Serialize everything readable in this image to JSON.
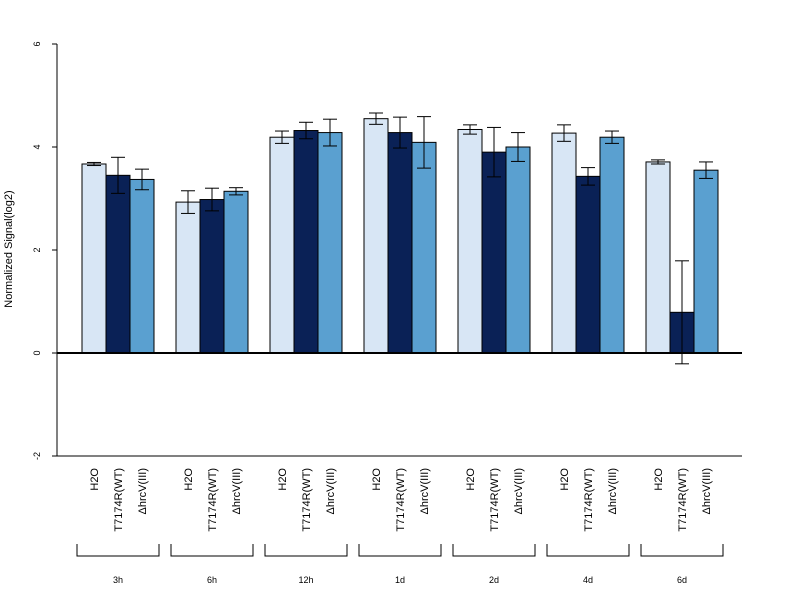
{
  "chart_data": {
    "type": "bar",
    "title": "",
    "xlabel": "",
    "ylabel": "Normalized Signal(log2)",
    "ylim": [
      -2,
      6
    ],
    "yticks": [
      -2,
      0,
      2,
      4,
      6
    ],
    "ytick_labels": [
      "-2",
      "0",
      "2",
      "4",
      "6"
    ],
    "grid": false,
    "legend": "none",
    "groups": [
      "3h",
      "6h",
      "12h",
      "1d",
      "2d",
      "4d",
      "6d"
    ],
    "bar_labels": [
      "H2O",
      "T7174R(WT)",
      "ΔhrcV(III)"
    ],
    "series": [
      {
        "color": "#d8e6f5",
        "values": [
          3.67,
          2.93,
          4.19,
          4.55,
          4.34,
          4.27,
          3.71
        ],
        "error": [
          0.03,
          0.22,
          0.12,
          0.11,
          0.09,
          0.16,
          0.04
        ]
      },
      {
        "color": "#0a2156",
        "values": [
          3.45,
          2.98,
          4.32,
          4.28,
          3.9,
          3.43,
          0.79
        ],
        "error": [
          0.35,
          0.22,
          0.16,
          0.3,
          0.48,
          0.17,
          1.0
        ]
      },
      {
        "color": "#5aa0d0",
        "values": [
          3.37,
          3.14,
          4.28,
          4.09,
          4.0,
          4.19,
          3.55
        ],
        "error": [
          0.2,
          0.07,
          0.26,
          0.5,
          0.28,
          0.12,
          0.16
        ]
      }
    ]
  }
}
